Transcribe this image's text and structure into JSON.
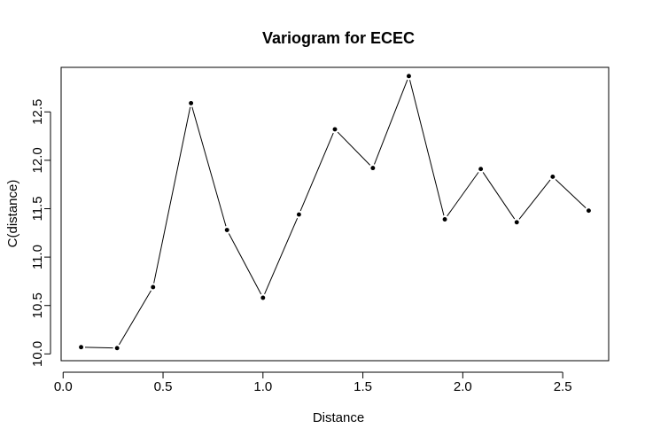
{
  "chart_data": {
    "type": "line",
    "title": "Variogram for ECEC",
    "xlabel": "Distance",
    "ylabel": "C(distance)",
    "xlim": [
      -0.01,
      2.73
    ],
    "ylim": [
      9.93,
      12.96
    ],
    "xticks": [
      0.0,
      0.5,
      1.0,
      1.5,
      2.0,
      2.5
    ],
    "xtick_labels": [
      "0.0",
      "0.5",
      "1.0",
      "1.5",
      "2.0",
      "2.5"
    ],
    "yticks": [
      10.0,
      10.5,
      11.0,
      11.5,
      12.0,
      12.5
    ],
    "ytick_labels": [
      "10.0",
      "10.5",
      "11.0",
      "11.5",
      "12.0",
      "12.5"
    ],
    "grid": false,
    "legend": "none",
    "series": [
      {
        "x": [
          0.09,
          0.27,
          0.45,
          0.64,
          0.82,
          1.0,
          1.18,
          1.36,
          1.55,
          1.73,
          1.91,
          2.09,
          2.27,
          2.45,
          2.63
        ],
        "values": [
          10.07,
          10.06,
          10.69,
          12.59,
          11.28,
          10.58,
          11.44,
          12.32,
          11.92,
          12.87,
          11.39,
          11.91,
          11.36,
          11.83,
          11.48
        ]
      }
    ]
  }
}
